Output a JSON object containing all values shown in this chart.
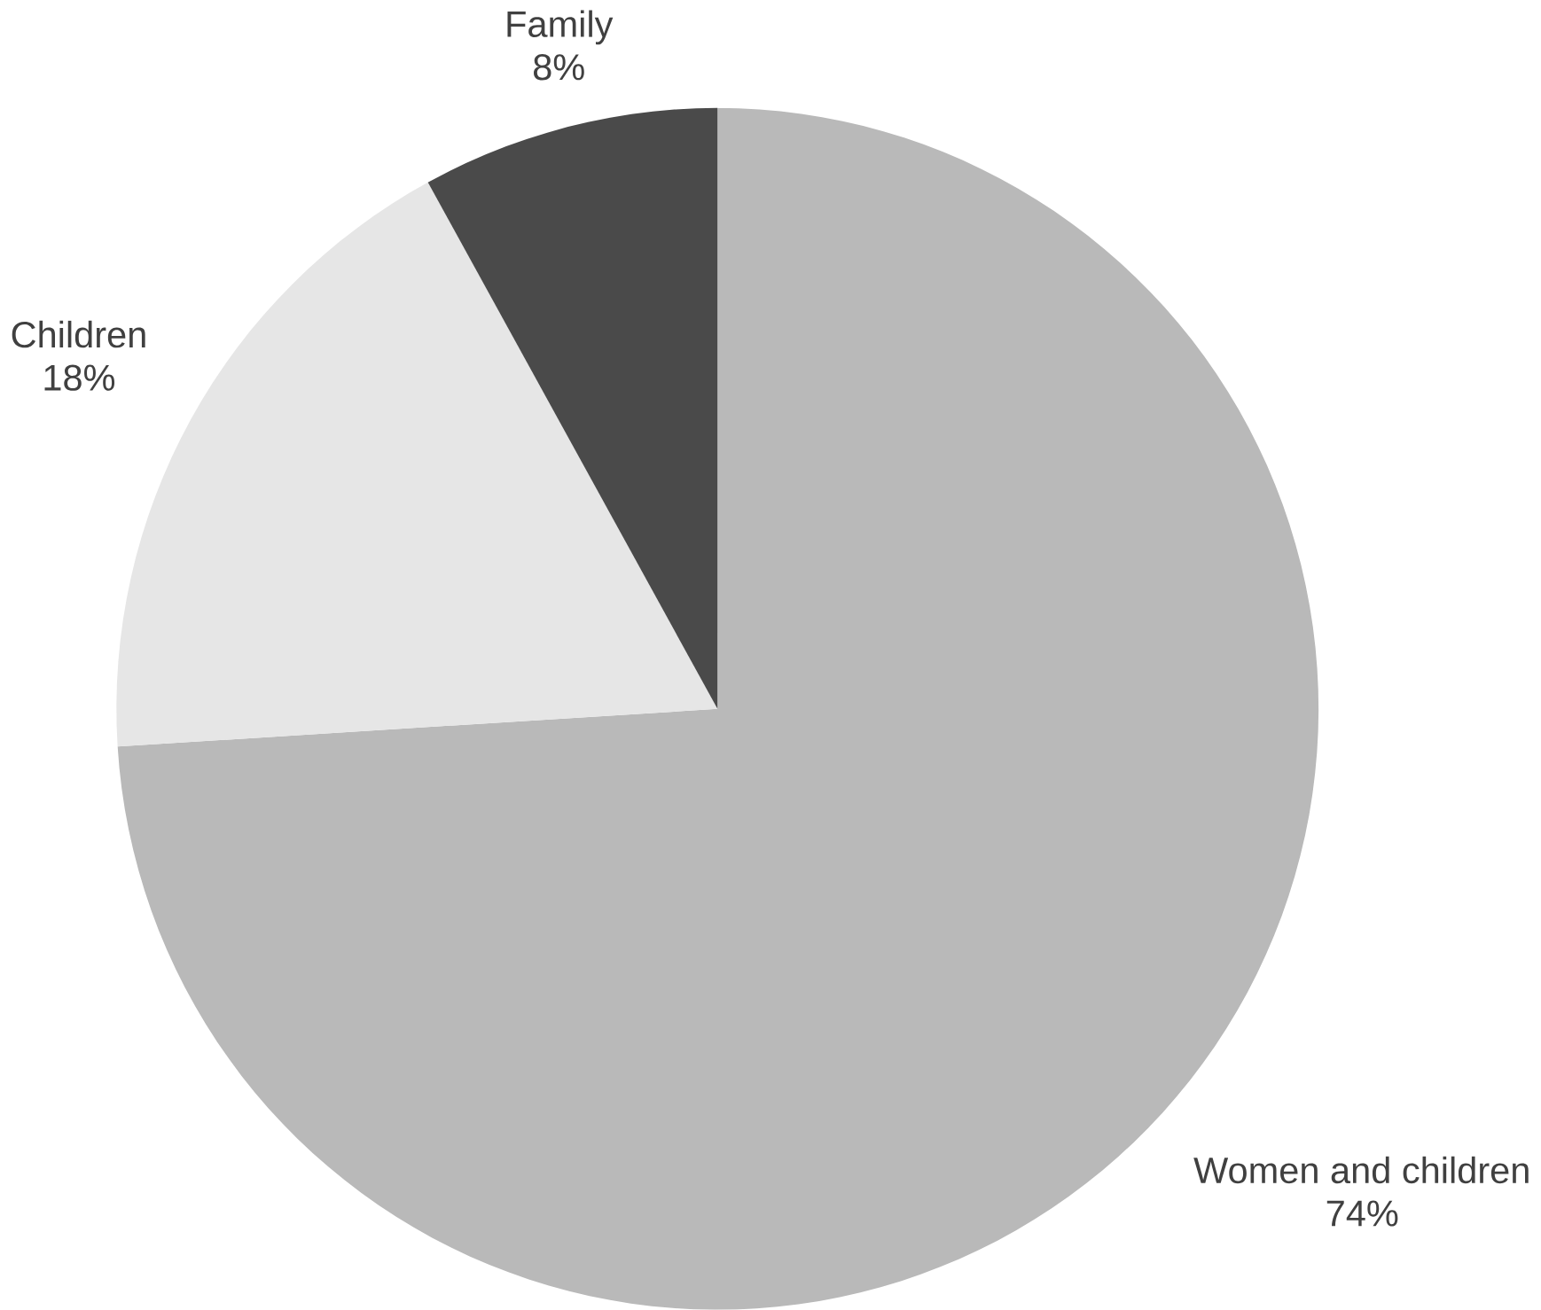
{
  "chart_data": {
    "type": "pie",
    "categories": [
      "Women and children",
      "Children",
      "Family"
    ],
    "values": [
      74,
      18,
      8
    ],
    "value_labels": [
      "74%",
      "18%",
      "8%"
    ],
    "colors": [
      "#b9b9b9",
      "#e6e6e6",
      "#4a4a4a"
    ]
  }
}
